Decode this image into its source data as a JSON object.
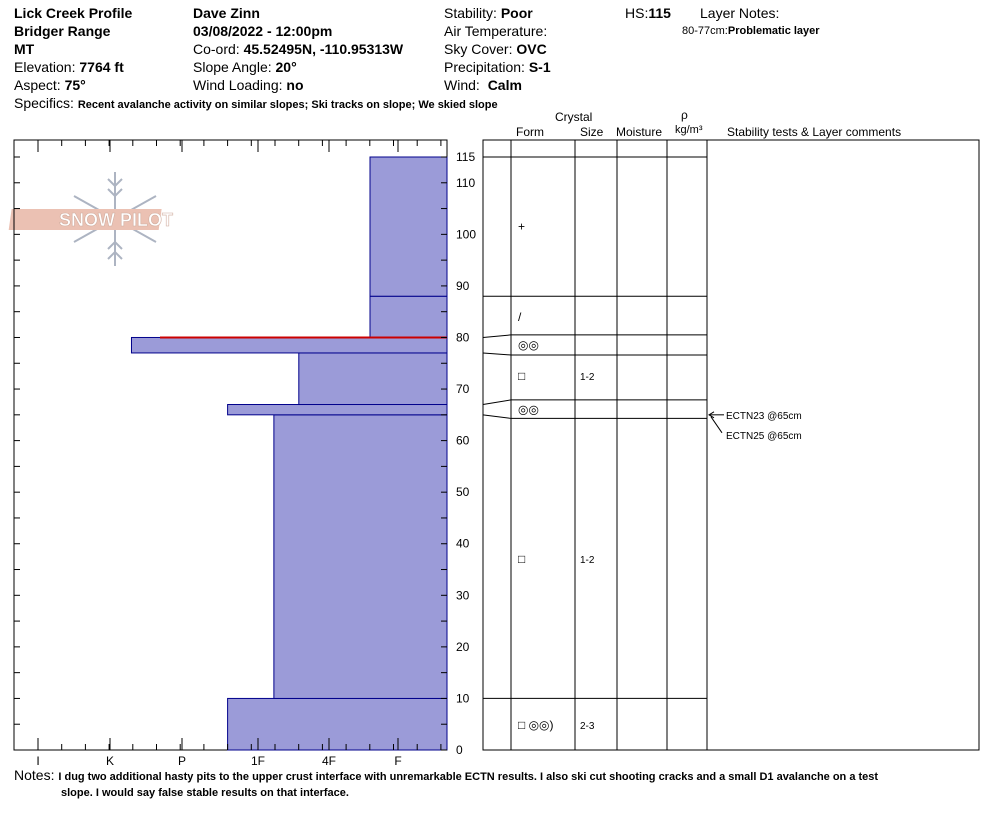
{
  "header": {
    "profile_name": "Lick Creek Profile",
    "range": "Bridger Range",
    "state": "MT",
    "elevation_label": "Elevation:",
    "elevation_value": "7764 ft",
    "aspect_label": "Aspect:",
    "aspect_value": "75°",
    "observer": "Dave Zinn",
    "datetime": "03/08/2022 - 12:00pm",
    "coord_label": "Co-ord:",
    "coord_value": "45.52495N, -110.95313W",
    "slope_label": "Slope Angle:",
    "slope_value": "20°",
    "wind_loading_label": "Wind Loading:",
    "wind_loading_value": "no",
    "stability_label": "Stability:",
    "stability_value": "Poor",
    "air_temp_label": "Air Temperature:",
    "sky_label": "Sky Cover:",
    "sky_value": "OVC",
    "precip_label": "Precipitation:",
    "precip_value": "S-1",
    "wind_label": "Wind:",
    "wind_value": "Calm",
    "hs_label": "HS:",
    "hs_value": "115",
    "layer_notes_label": "Layer Notes:",
    "layer_note_range": "80-77cm:",
    "layer_note_text": "Problematic layer",
    "specifics_label": "Specifics:",
    "specifics_value": "Recent avalanche activity on similar slopes; Ski tracks on slope; We skied slope"
  },
  "logo": {
    "text": "SNOW PILOT"
  },
  "columns": {
    "crystal": "Crystal",
    "form": "Form",
    "size": "Size",
    "moisture": "Moisture",
    "rho": "ρ",
    "density_unit": "kg/m³",
    "comments": "Stability tests & Layer comments"
  },
  "hardness_ticks": [
    "I",
    "K",
    "P",
    "1F",
    "4F",
    "F"
  ],
  "chart_data": {
    "type": "bar",
    "title": "",
    "ylim": [
      0,
      115
    ],
    "y_ticks": [
      115,
      110,
      100,
      90,
      80,
      70,
      60,
      50,
      40,
      30,
      20,
      10,
      0
    ],
    "x_categories": [
      "I",
      "K",
      "P",
      "1F",
      "4F",
      "F"
    ],
    "layers": [
      {
        "bottom": 0,
        "top": 10,
        "hardness": 3.0,
        "form": "□ ◎◎",
        "size": "2-3"
      },
      {
        "bottom": 10,
        "top": 65,
        "hardness": 3.65,
        "form": "□",
        "size": "1-2"
      },
      {
        "bottom": 65,
        "top": 67,
        "hardness": 3.0
      },
      {
        "bottom": 67,
        "top": 77,
        "hardness": 4.0,
        "form": "□",
        "size": "1-2"
      },
      {
        "bottom": 77,
        "top": 80,
        "hardness": 1.65,
        "form": "◎◎"
      },
      {
        "bottom": 80,
        "top": 88,
        "hardness": 5.0,
        "form": "/"
      },
      {
        "bottom": 88,
        "top": 115,
        "hardness": 5.0,
        "form": "+"
      }
    ],
    "problem_layer_line": 80,
    "stability_tests": [
      {
        "label": "ECTN23 @65cm",
        "depth": 65
      },
      {
        "label": "ECTN25 @65cm",
        "depth": 65
      }
    ]
  },
  "notes": {
    "label": "Notes:",
    "line1": "I dug two additional hasty pits to the upper crust interface with unremarkable ECTN results. I also ski cut shooting cracks and a small D1 avalanche on a test",
    "line2": "slope. I would say false stable results on that interface."
  },
  "colors": {
    "layer_fill": "#9b9bd8",
    "layer_stroke": "#00008b",
    "problem_line": "#cc0000",
    "logo": "#e8b7a6"
  }
}
